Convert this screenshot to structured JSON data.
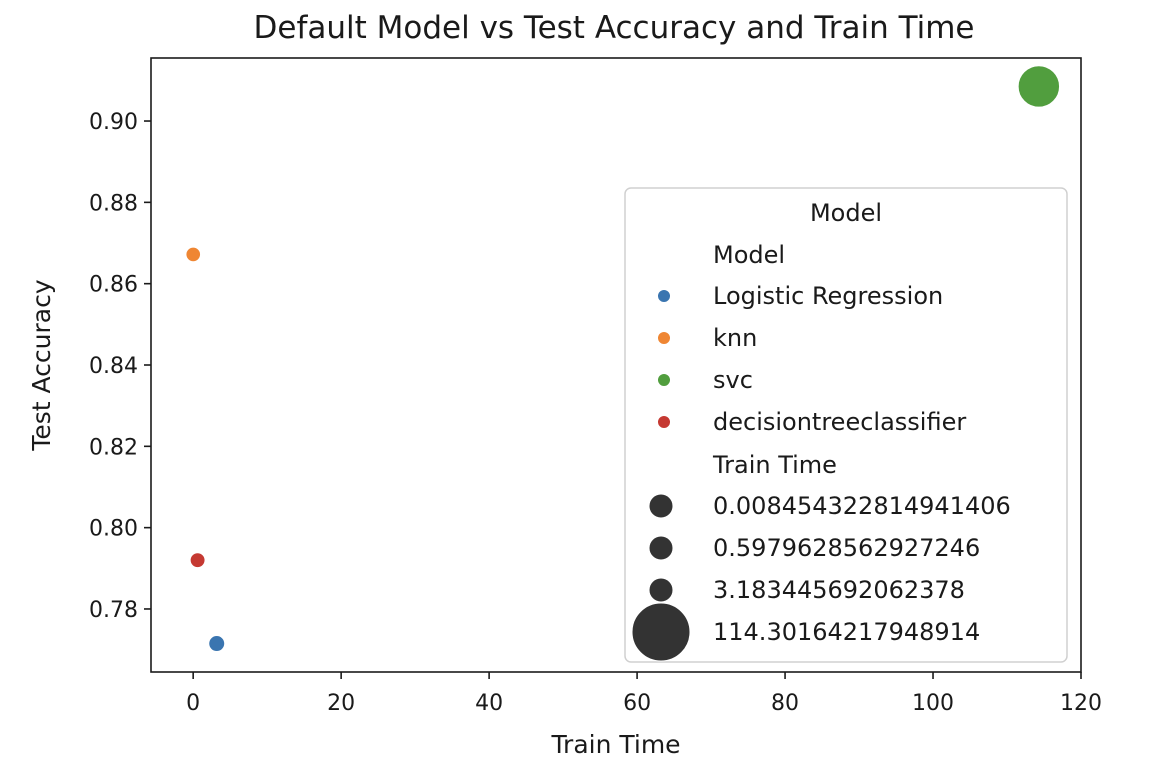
{
  "chart_data": {
    "type": "scatter",
    "title": "Default Model vs Test Accuracy and Train Time",
    "xlabel": "Train Time",
    "ylabel": "Test Accuracy",
    "xlim": [
      -5.7,
      120
    ],
    "ylim": [
      0.7645,
      0.9155
    ],
    "xticks": [
      0,
      20,
      40,
      60,
      80,
      100,
      120
    ],
    "xtick_labels": [
      "0",
      "20",
      "40",
      "60",
      "80",
      "100",
      "120"
    ],
    "yticks": [
      0.78,
      0.8,
      0.82,
      0.84,
      0.86,
      0.88,
      0.9
    ],
    "ytick_labels": [
      "0.78",
      "0.80",
      "0.82",
      "0.84",
      "0.86",
      "0.88",
      "0.90"
    ],
    "grid": false,
    "points": [
      {
        "model": "Logistic Regression",
        "x": 3.183445692062378,
        "y": 0.7715,
        "color": "#3a75b0"
      },
      {
        "model": "knn",
        "x": 0.008454322814941406,
        "y": 0.8672,
        "color": "#ef8633"
      },
      {
        "model": "svc",
        "x": 114.30164217948914,
        "y": 0.9085,
        "color": "#519e3e"
      },
      {
        "model": "decisiontreeclassifier",
        "x": 0.5979628562927246,
        "y": 0.792,
        "color": "#c53932"
      }
    ],
    "legend": {
      "placement": "center-right",
      "title": "Model",
      "hue_title": "Model",
      "hue_entries": [
        {
          "label": "Logistic Regression",
          "color": "#3a75b0"
        },
        {
          "label": "knn",
          "color": "#ef8633"
        },
        {
          "label": "svc",
          "color": "#519e3e"
        },
        {
          "label": "decisiontreeclassifier",
          "color": "#c53932"
        }
      ],
      "size_title": "Train Time",
      "size_entries": [
        {
          "label": "0.008454322814941406",
          "value": 0.008454322814941406
        },
        {
          "label": "0.5979628562927246",
          "value": 0.5979628562927246
        },
        {
          "label": "3.183445692062378",
          "value": 3.183445692062378
        },
        {
          "label": "114.30164217948914",
          "value": 114.30164217948914
        }
      ],
      "size_color": "#333333"
    }
  }
}
